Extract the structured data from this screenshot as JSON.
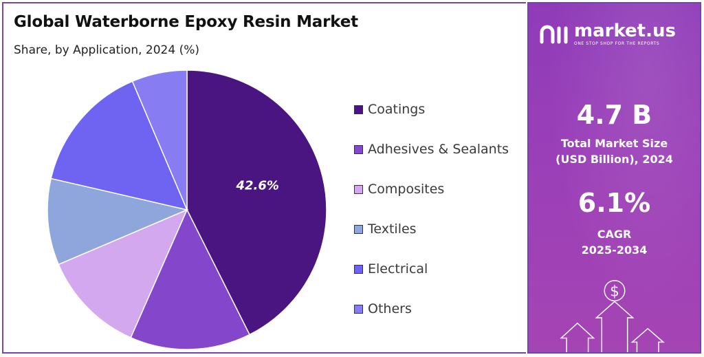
{
  "header": {
    "title": "Global Waterborne Epoxy Resin Market",
    "subtitle": "Share, by Application, 2024 (%)"
  },
  "chart_data": {
    "type": "pie",
    "title": "Global Waterborne Epoxy Resin Market",
    "subtitle": "Share, by Application, 2024 (%)",
    "categories": [
      "Coatings",
      "Adhesives & Sealants",
      "Composites",
      "Textiles",
      "Electrical",
      "Others"
    ],
    "values": [
      42.6,
      14.0,
      12.0,
      10.0,
      15.0,
      6.4
    ],
    "colors": [
      "#4a1580",
      "#8447cc",
      "#d4a8ee",
      "#8fa6dc",
      "#6f63f2",
      "#877cf2"
    ],
    "data_labels": [
      {
        "category": "Coatings",
        "text": "42.6%"
      }
    ],
    "legend": "right"
  },
  "brand": {
    "name": "market.us",
    "tagline": "ONE STOP SHOP FOR THE REPORTS"
  },
  "stats": {
    "market_size_value": "4.7 B",
    "market_size_label_1": "Total Market Size",
    "market_size_label_2": "(USD Billion), 2024",
    "cagr_value": "6.1%",
    "cagr_label_1": "CAGR",
    "cagr_label_2": "2025-2034"
  },
  "icons": {
    "dollar": "$"
  }
}
